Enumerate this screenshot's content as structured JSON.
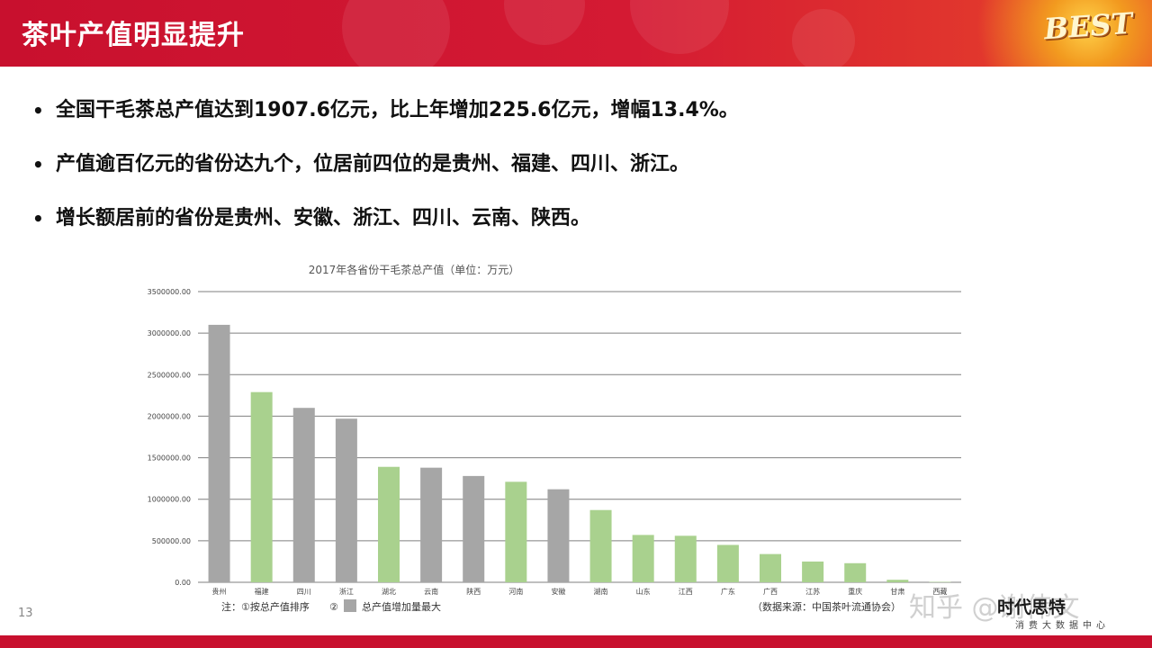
{
  "header": {
    "title": "茶叶产值明显提升",
    "logo": "BEST"
  },
  "bullets": [
    "全国干毛茶总产值达到1907.6亿元，比上年增加225.6亿元，增幅13.4%。",
    "产值逾百亿元的省份达九个，位居前四位的是贵州、福建、四川、浙江。",
    "增长额居前的省份是贵州、安徽、浙江、四川、云南、陕西。"
  ],
  "page_number": "13",
  "watermark": "知乎 @谢伟文",
  "brand": {
    "name": "时代思特",
    "sub": "消费大数据中心"
  },
  "colors": {
    "header_red": "#c8102e",
    "bar_gray": "#a6a6a6",
    "bar_green": "#a9d18e"
  },
  "chart_data": {
    "type": "bar",
    "title": "2017年各省份干毛茶总产值（单位：万元）",
    "categories": [
      "贵州",
      "福建",
      "四川",
      "浙江",
      "湖北",
      "云南",
      "陕西",
      "河南",
      "安徽",
      "湖南",
      "山东",
      "江西",
      "广东",
      "广西",
      "江苏",
      "重庆",
      "甘肃",
      "西藏"
    ],
    "values": [
      3100000,
      2290000,
      2100000,
      1970000,
      1390000,
      1380000,
      1280000,
      1210000,
      1120000,
      870000,
      570000,
      560000,
      450000,
      340000,
      250000,
      230000,
      30000,
      5000
    ],
    "highlight": [
      "gray",
      "green",
      "gray",
      "gray",
      "green",
      "gray",
      "gray",
      "green",
      "gray",
      "green",
      "green",
      "green",
      "green",
      "green",
      "green",
      "green",
      "green",
      "green"
    ],
    "y_ticks": [
      "0.00",
      "500000.00",
      "1000000.00",
      "1500000.00",
      "2000000.00",
      "2500000.00",
      "3000000.00",
      "3500000.00"
    ],
    "ylim": [
      0,
      3500000
    ],
    "grid": true,
    "note_prefix": "注：①按总产值排序",
    "note_legend_num": "②",
    "note_legend_text": "总产值增加量最大",
    "source": "（数据来源：中国茶叶流通协会）"
  }
}
